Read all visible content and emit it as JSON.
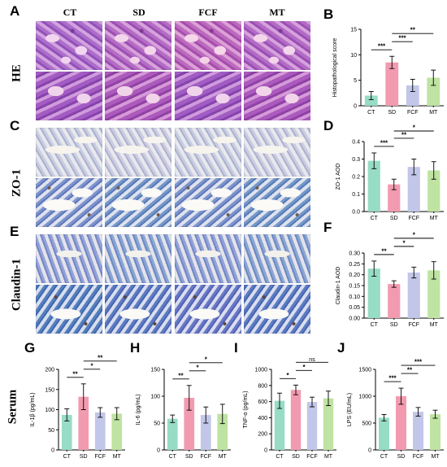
{
  "panel_letters": {
    "A": "A",
    "B": "B",
    "C": "C",
    "D": "D",
    "E": "E",
    "F": "F",
    "G": "G",
    "H": "H",
    "I": "I",
    "J": "J"
  },
  "group_headers": [
    "CT",
    "SD",
    "FCF",
    "MT"
  ],
  "row_labels": {
    "he": "HE",
    "zo1": "ZO-1",
    "claudin": "Claudin-1",
    "serum": "Serum"
  },
  "colors": {
    "CT": "#97dcc4",
    "SD": "#f29bb0",
    "FCF": "#c2c6e8",
    "MT": "#bfe3a2"
  },
  "chart_data": [
    {
      "id": "B",
      "type": "bar",
      "categories": [
        "CT",
        "SD",
        "FCF",
        "MT"
      ],
      "values": [
        2.0,
        8.5,
        4.0,
        5.5
      ],
      "errors": [
        0.8,
        1.2,
        1.2,
        1.5
      ],
      "ylabel": "Histopathological score",
      "ylim": [
        0,
        15
      ],
      "yticks": [
        0,
        5,
        10,
        15
      ],
      "significance": [
        {
          "from": 0,
          "to": 1,
          "label": "***"
        },
        {
          "from": 1,
          "to": 2,
          "label": "***"
        },
        {
          "from": 1,
          "to": 3,
          "label": "**"
        }
      ]
    },
    {
      "id": "D",
      "type": "bar",
      "categories": [
        "CT",
        "SD",
        "FCF",
        "MT"
      ],
      "values": [
        0.29,
        0.155,
        0.255,
        0.235
      ],
      "errors": [
        0.045,
        0.03,
        0.045,
        0.05
      ],
      "ylabel": "ZO-1 AOD",
      "ylim": [
        0,
        0.4
      ],
      "yticks": [
        0.0,
        0.1,
        0.2,
        0.3,
        0.4
      ],
      "significance": [
        {
          "from": 0,
          "to": 1,
          "label": "***"
        },
        {
          "from": 1,
          "to": 2,
          "label": "**"
        },
        {
          "from": 1,
          "to": 3,
          "label": "*"
        }
      ]
    },
    {
      "id": "F",
      "type": "bar",
      "categories": [
        "CT",
        "SD",
        "FCF",
        "MT"
      ],
      "values": [
        0.228,
        0.157,
        0.21,
        0.22
      ],
      "errors": [
        0.035,
        0.015,
        0.025,
        0.04
      ],
      "ylabel": "Claudin-1 AOD",
      "ylim": [
        0,
        0.3
      ],
      "yticks": [
        0.0,
        0.05,
        0.1,
        0.15,
        0.2,
        0.25,
        0.3
      ],
      "significance": [
        {
          "from": 0,
          "to": 1,
          "label": "**"
        },
        {
          "from": 1,
          "to": 2,
          "label": "*"
        },
        {
          "from": 1,
          "to": 3,
          "label": "*"
        }
      ]
    },
    {
      "id": "G",
      "type": "bar",
      "categories": [
        "CT",
        "SD",
        "FCF",
        "MT"
      ],
      "values": [
        87,
        132,
        93,
        90
      ],
      "errors": [
        15,
        32,
        12,
        15
      ],
      "ylabel": "IL-1β (pg/mL)",
      "ylim": [
        0,
        200
      ],
      "yticks": [
        0,
        50,
        100,
        150,
        200
      ],
      "significance": [
        {
          "from": 0,
          "to": 1,
          "label": "**"
        },
        {
          "from": 1,
          "to": 2,
          "label": "*"
        },
        {
          "from": 1,
          "to": 3,
          "label": "**"
        }
      ]
    },
    {
      "id": "H",
      "type": "bar",
      "categories": [
        "CT",
        "SD",
        "FCF",
        "MT"
      ],
      "values": [
        58,
        97,
        65,
        67
      ],
      "errors": [
        7,
        23,
        15,
        18
      ],
      "ylabel": "IL-6 (pg/mL)",
      "ylim": [
        0,
        150
      ],
      "yticks": [
        0,
        50,
        100,
        150
      ],
      "significance": [
        {
          "from": 0,
          "to": 1,
          "label": "**"
        },
        {
          "from": 1,
          "to": 2,
          "label": "*"
        },
        {
          "from": 1,
          "to": 3,
          "label": "*"
        }
      ]
    },
    {
      "id": "I",
      "type": "bar",
      "categories": [
        "CT",
        "SD",
        "FCF",
        "MT"
      ],
      "values": [
        610,
        745,
        595,
        640
      ],
      "errors": [
        95,
        60,
        60,
        90
      ],
      "ylabel": "TNF-α (pg/mL)",
      "ylim": [
        0,
        1000
      ],
      "yticks": [
        0,
        200,
        400,
        600,
        800,
        1000
      ],
      "significance": [
        {
          "from": 0,
          "to": 1,
          "label": "*"
        },
        {
          "from": 1,
          "to": 2,
          "label": "*"
        },
        {
          "from": 1,
          "to": 3,
          "label": "ns"
        }
      ]
    },
    {
      "id": "J",
      "type": "bar",
      "categories": [
        "CT",
        "SD",
        "FCF",
        "MT"
      ],
      "values": [
        600,
        1000,
        710,
        665
      ],
      "errors": [
        60,
        150,
        80,
        75
      ],
      "ylabel": "LPS (EU/mL)",
      "ylim": [
        0,
        1500
      ],
      "yticks": [
        0,
        500,
        1000,
        1500
      ],
      "significance": [
        {
          "from": 0,
          "to": 1,
          "label": "***"
        },
        {
          "from": 1,
          "to": 2,
          "label": "**"
        },
        {
          "from": 1,
          "to": 3,
          "label": "***"
        }
      ]
    }
  ]
}
